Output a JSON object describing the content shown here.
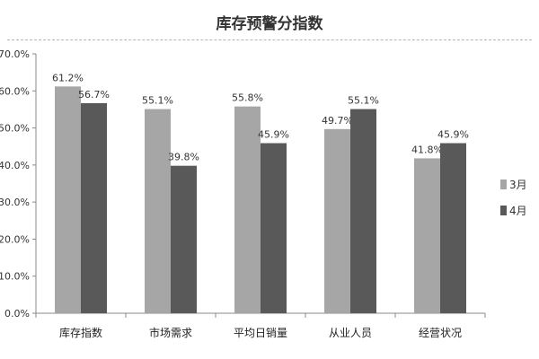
{
  "chart_data": {
    "type": "bar",
    "title": "库存预警分指数",
    "categories": [
      "库存指数",
      "市场需求",
      "平均日销量",
      "从业人员",
      "经营状况"
    ],
    "series": [
      {
        "name": "3月",
        "values": [
          61.2,
          55.1,
          55.8,
          49.7,
          41.8
        ],
        "color": "#a6a6a6"
      },
      {
        "name": "4月",
        "values": [
          56.7,
          39.8,
          45.9,
          55.1,
          45.9
        ],
        "color": "#595959"
      }
    ],
    "data_labels": [
      [
        "61.2%",
        "55.1%",
        "55.8%",
        "49.7%",
        "41.8%"
      ],
      [
        "56.7%",
        "39.8%",
        "45.9%",
        "55.1%",
        "45.9%"
      ]
    ],
    "yticks": [
      0,
      10,
      20,
      30,
      40,
      50,
      60,
      70
    ],
    "ytick_labels": [
      "0.0%",
      "10.0%",
      "20.0%",
      "30.0%",
      "40.0%",
      "50.0%",
      "60.0%",
      "70.0%"
    ],
    "ylim": [
      0,
      70
    ],
    "xlabel": "",
    "ylabel": "",
    "grid": false,
    "legend_position": "right"
  }
}
